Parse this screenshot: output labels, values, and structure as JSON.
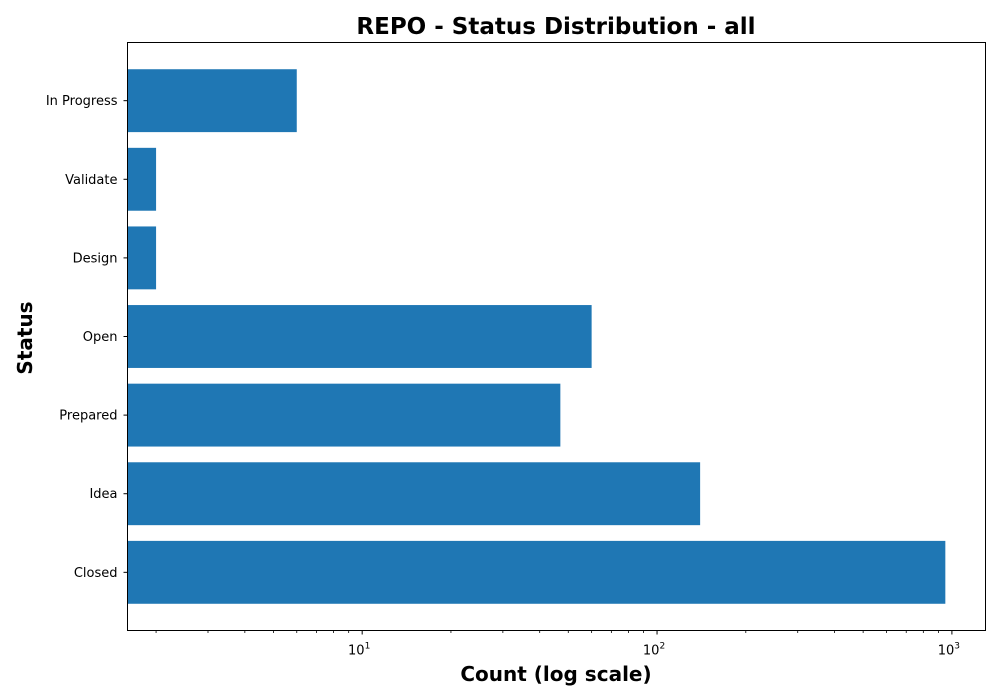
{
  "chart_data": {
    "type": "bar",
    "orientation": "horizontal",
    "title": "REPO - Status Distribution - all",
    "xlabel": "Count (log scale)",
    "ylabel": "Status",
    "xscale": "log",
    "xlim": [
      1.6,
      1300
    ],
    "categories": [
      "Closed",
      "Idea",
      "Prepared",
      "Open",
      "Design",
      "Validate",
      "In Progress"
    ],
    "values": [
      950,
      140,
      47,
      60,
      2,
      2,
      6
    ],
    "x_ticks": [
      {
        "value": 10,
        "base": "10",
        "exp": "1"
      },
      {
        "value": 100,
        "base": "10",
        "exp": "2"
      },
      {
        "value": 1000,
        "base": "10",
        "exp": "3"
      }
    ],
    "bar_color": "#1f77b4",
    "grid": false,
    "legend": "none"
  }
}
